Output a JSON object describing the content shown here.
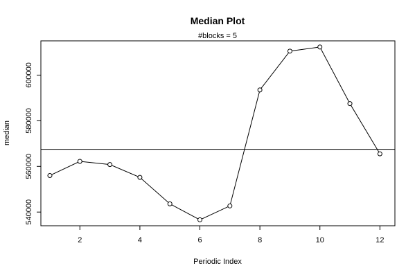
{
  "chart_data": {
    "type": "line",
    "title": "Median Plot",
    "subtitle": "#blocks =  5",
    "xlabel": "Periodic Index",
    "ylabel": "median",
    "xlim": [
      0.7,
      12.5
    ],
    "ylim": [
      534000,
      615000
    ],
    "x_ticks": [
      2,
      4,
      6,
      8,
      10,
      12
    ],
    "y_ticks": [
      540000,
      560000,
      580000,
      600000
    ],
    "x_tick_labels": [
      "2",
      "4",
      "6",
      "8",
      "10",
      "12"
    ],
    "y_tick_labels": [
      "540000",
      "560000",
      "580000",
      "600000"
    ],
    "reference_line": 567500,
    "grid": false,
    "legend": "none",
    "series": [
      {
        "x": [
          1,
          2,
          3,
          4,
          5,
          6,
          7,
          8,
          9,
          10,
          11,
          12
        ],
        "values": [
          556000,
          562200,
          560800,
          555200,
          543600,
          536600,
          542700,
          593500,
          610500,
          612300,
          587500,
          565500
        ]
      }
    ],
    "colors": {
      "line": "#000000",
      "marker_fill": "#ffffff"
    }
  }
}
